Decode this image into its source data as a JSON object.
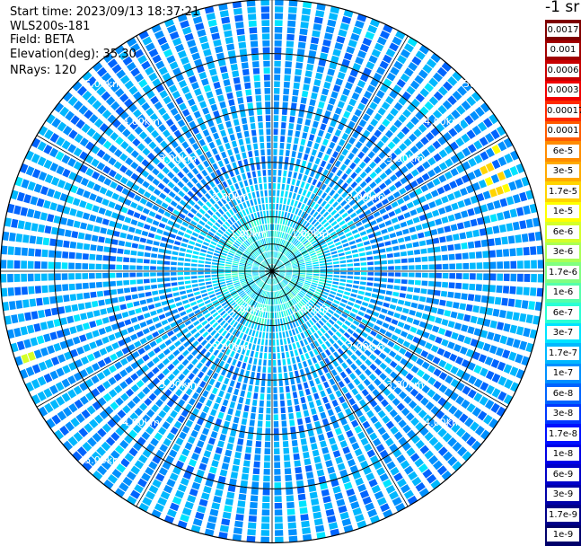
{
  "header": {
    "start_time": "Start time: 2023/09/13 18:37:21",
    "instrument": "WLS200s-181",
    "field": "Field: BETA",
    "elevation": "Elevation(deg): 35.30",
    "nrays": "NRays: 120"
  },
  "colorbar": {
    "title": "-1 sr",
    "labels": [
      "0.0017",
      "0.001",
      "0.0006",
      "0.0003",
      "0.00017",
      "0.0001",
      "6e-5",
      "3e-5",
      "1.7e-5",
      "1e-5",
      "6e-6",
      "3e-6",
      "1.7e-6",
      "1e-6",
      "6e-7",
      "3e-7",
      "1.7e-7",
      "1e-7",
      "6e-8",
      "3e-8",
      "1.7e-8",
      "1e-8",
      "6e-9",
      "3e-9",
      "1.7e-9",
      "1e-9"
    ],
    "colors": [
      "#7f0000",
      "#a00000",
      "#c80000",
      "#f00000",
      "#ff2a00",
      "#ff5a00",
      "#ff8c00",
      "#ffaa00",
      "#ffd400",
      "#ffff00",
      "#d4ff2a",
      "#aaff55",
      "#80ff80",
      "#55ffaa",
      "#2affd4",
      "#00e4ff",
      "#00b8ff",
      "#0090ff",
      "#0064ff",
      "#0038ff",
      "#0010ff",
      "#0000e6",
      "#0000c8",
      "#0000a8",
      "#000088",
      "#00006a"
    ]
  },
  "chart_data": {
    "type": "heatmap",
    "projection": "polar PPI",
    "n_rays": 120,
    "range_km": [
      0,
      5.0
    ],
    "range_ring_labels_km": [
      "1.00km",
      "2.00km",
      "3.00km",
      "4.00km",
      "5.00km"
    ],
    "range_ring_labels_visible": [
      "1.00km",
      "1.00km",
      "1.00km",
      "1.00km",
      "2.00km",
      "2.00km",
      "2.00km",
      "2.00km",
      "3.00km",
      "3.00km",
      "3.00km",
      "3.00km",
      "4.00km",
      "4.00km",
      "4.00km",
      "4.00km",
      "5.00km",
      "50",
      "5.00km"
    ],
    "azimuth_spokes_deg": [
      0,
      30,
      60,
      90,
      120,
      150,
      180,
      210,
      240,
      270,
      300,
      330
    ],
    "field": "BETA",
    "units": "-1 sr",
    "dominant_value": "1.7e-7",
    "value_range": [
      "1e-9",
      "0.0017"
    ],
    "notes": "Near range up to ~1 km mostly 3e-7 to 1e-6 (cyan); beyond mostly 6e-8 to 1.7e-7 (blue); isolated 1e-5 to 1.7e-5 (yellow/orange) cells at ~4.7 km east-northeast and ~4.8 km west-southwest"
  }
}
